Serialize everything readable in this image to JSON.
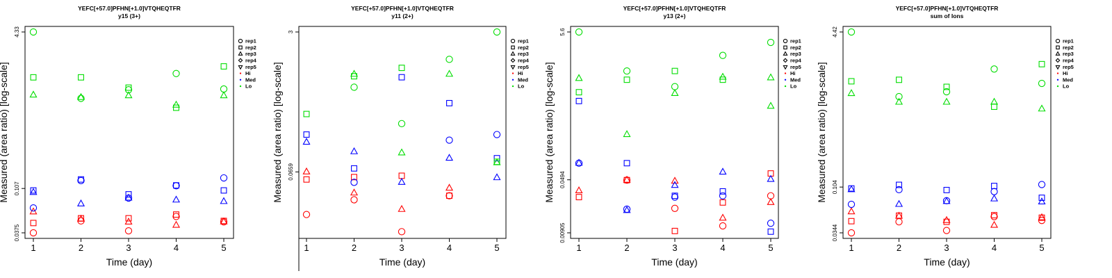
{
  "colors": {
    "Hi": "#ff0000",
    "Med": "#0000ff",
    "Lo": "#00dd00"
  },
  "legend": {
    "placement": "right",
    "items": [
      {
        "label": "rep1",
        "marker": "circle"
      },
      {
        "label": "rep2",
        "marker": "square"
      },
      {
        "label": "rep3",
        "marker": "triangle-up"
      },
      {
        "label": "rep4",
        "marker": "diamond"
      },
      {
        "label": "rep5",
        "marker": "triangle-down"
      },
      {
        "label": "Hi",
        "marker": "dot",
        "color": "#ff0000"
      },
      {
        "label": "Med",
        "marker": "dot",
        "color": "#0000ff"
      },
      {
        "label": "Lo",
        "marker": "dot",
        "color": "#00dd00"
      }
    ]
  },
  "chart_data": [
    {
      "type": "scatter",
      "title": "YEFC[+57.0]PFHN[+1.0]VTQHEQTFR",
      "subtitle": "y15 (3+)",
      "xlabel": "Time (day)",
      "ylabel": "Measured (area ratio) [log-scale]",
      "log_y": true,
      "ylim": [
        0.0375,
        4.33
      ],
      "yticks": [
        "0.0375",
        "0.107",
        "4.33"
      ],
      "xticks": [
        "1",
        "2",
        "3",
        "4",
        "5"
      ],
      "grid": false,
      "series": [
        {
          "name": "Hi",
          "marker": "circle",
          "points": [
            [
              1,
              0.0375
            ],
            [
              2,
              0.0497
            ],
            [
              3,
              0.0393
            ],
            [
              4,
              0.0552
            ],
            [
              5,
              0.0486
            ]
          ]
        },
        {
          "name": "Hi",
          "marker": "square",
          "points": [
            [
              1,
              0.0473
            ],
            [
              2,
              0.0529
            ],
            [
              3,
              0.0529
            ],
            [
              4,
              0.0578
            ],
            [
              5,
              0.0497
            ]
          ]
        },
        {
          "name": "Hi",
          "marker": "triangle-up",
          "points": [
            [
              1,
              0.0616
            ],
            [
              2,
              0.0518
            ],
            [
              3,
              0.0484
            ],
            [
              4,
              0.0449
            ],
            [
              5,
              0.0486
            ]
          ]
        },
        {
          "name": "Med",
          "marker": "circle",
          "points": [
            [
              1,
              0.0676
            ],
            [
              2,
              0.129
            ],
            [
              3,
              0.0853
            ],
            [
              4,
              0.1141
            ],
            [
              5,
              0.1374
            ]
          ]
        },
        {
          "name": "Med",
          "marker": "square",
          "points": [
            [
              1,
              0.1022
            ],
            [
              2,
              0.1325
            ],
            [
              3,
              0.0932
            ],
            [
              4,
              0.1151
            ],
            [
              5,
              0.1022
            ]
          ]
        },
        {
          "name": "Med",
          "marker": "triangle-up",
          "points": [
            [
              1,
              0.0976
            ],
            [
              2,
              0.0744
            ],
            [
              3,
              0.0853
            ],
            [
              4,
              0.0815
            ],
            [
              5,
              0.0787
            ]
          ]
        },
        {
          "name": "Lo",
          "marker": "circle",
          "points": [
            [
              1,
              4.33
            ],
            [
              2,
              0.9009
            ],
            [
              3,
              1.1036
            ],
            [
              4,
              1.6211
            ],
            [
              5,
              1.1241
            ]
          ]
        },
        {
          "name": "Lo",
          "marker": "square",
          "points": [
            [
              1,
              1.4809
            ],
            [
              2,
              1.4809
            ],
            [
              3,
              1.1613
            ],
            [
              4,
              0.7219
            ],
            [
              5,
              1.9189
            ]
          ]
        },
        {
          "name": "Lo",
          "marker": "triangle-up",
          "points": [
            [
              1,
              0.9752
            ],
            [
              2,
              0.9206
            ],
            [
              3,
              0.9595
            ],
            [
              4,
              0.7689
            ],
            [
              5,
              0.9595
            ]
          ]
        }
      ]
    },
    {
      "type": "scatter",
      "title": "YEFC[+57.0]PFHN[+1.0]VTQHEQTFR",
      "subtitle": "y11 (2+)",
      "xlabel": "Time (day)",
      "ylabel": "Measured (area ratio) [log-scale]",
      "log_y": true,
      "ylim": [
        0.0125,
        3
      ],
      "yticks": [
        "0.0659",
        "3"
      ],
      "xticks": [
        "1",
        "2",
        "3",
        "4",
        "5"
      ],
      "grid": false,
      "series": [
        {
          "name": "Hi",
          "marker": "circle",
          "points": [
            [
              1,
              0.0206
            ],
            [
              2,
              0.0308
            ],
            [
              3,
              0.0129
            ],
            [
              4,
              0.0344
            ],
            [
              5,
              null
            ]
          ]
        },
        {
          "name": "Hi",
          "marker": "square",
          "points": [
            [
              1,
              0.0536
            ],
            [
              2,
              0.0572
            ],
            [
              3,
              0.0593
            ],
            [
              4,
              0.0344
            ],
            [
              5,
              null
            ]
          ]
        },
        {
          "name": "Hi",
          "marker": "triangle-up",
          "points": [
            [
              1,
              0.0659
            ],
            [
              2,
              0.0371
            ],
            [
              3,
              0.0237
            ],
            [
              4,
              0.0423
            ],
            [
              5,
              null
            ]
          ]
        },
        {
          "name": "Med",
          "marker": "circle",
          "points": [
            [
              1,
              null
            ],
            [
              2,
              0.0496
            ],
            [
              3,
              null
            ],
            [
              4,
              0.1568
            ],
            [
              5,
              0.1826
            ]
          ]
        },
        {
          "name": "Med",
          "marker": "square",
          "points": [
            [
              1,
              0.1826
            ],
            [
              2,
              0.0725
            ],
            [
              3,
              0.872
            ],
            [
              4,
              0.4302
            ],
            [
              5,
              0.0958
            ]
          ]
        },
        {
          "name": "Med",
          "marker": "triangle-up",
          "points": [
            [
              1,
              0.1482
            ],
            [
              2,
              0.1144
            ],
            [
              3,
              0.0496
            ],
            [
              4,
              0.0958
            ],
            [
              5,
              0.0563
            ]
          ]
        },
        {
          "name": "Lo",
          "marker": "circle",
          "points": [
            [
              1,
              null
            ],
            [
              2,
              0.6648
            ],
            [
              3,
              0.2462
            ],
            [
              4,
              null
            ],
            [
              5,
              3
            ]
          ]
        },
        {
          "name": "Lo",
          "marker": "square",
          "points": [
            [
              1,
              0.3198
            ],
            [
              2,
              0.8961
            ],
            [
              3,
              1.1266
            ],
            [
              4,
              null
            ],
            [
              5,
              0.0868
            ]
          ]
        },
        {
          "name": "Lo",
          "marker": "triangle-up",
          "points": [
            [
              1,
              null
            ],
            [
              2,
              0.9479
            ],
            [
              3,
              0.1108
            ],
            [
              4,
              0.9479
            ],
            [
              5,
              0.0847
            ]
          ]
        },
        {
          "name": "Lo",
          "marker": "circle",
          "points": [
            [
              4,
              1.4219
            ]
          ]
        }
      ]
    },
    {
      "type": "scatter",
      "title": "YEFC[+57.0]PFHN[+1.0]VTQHEQTFR",
      "subtitle": "y13 (2+)",
      "xlabel": "Time (day)",
      "ylabel": "Measured (area ratio) [log-scale]",
      "log_y": true,
      "ylim": [
        0.00905,
        5.6
      ],
      "yticks": [
        "0.00905",
        "0.0494",
        "5.6"
      ],
      "xticks": [
        "1",
        "2",
        "3",
        "4",
        "5"
      ],
      "grid": false,
      "series": [
        {
          "name": "Hi",
          "marker": "circle",
          "points": [
            [
              1,
              null
            ],
            [
              2,
              0.0489
            ],
            [
              3,
              0.0198
            ],
            [
              4,
              0.0113
            ],
            [
              5,
              0.0296
            ]
          ]
        },
        {
          "name": "Hi",
          "marker": "square",
          "points": [
            [
              1,
              0.0284
            ],
            [
              2,
              0.0489
            ],
            [
              3,
              0.0096
            ],
            [
              4,
              0.0239
            ],
            [
              5,
              0.0605
            ]
          ]
        },
        {
          "name": "Hi",
          "marker": "triangle-up",
          "points": [
            [
              1,
              0.0348
            ],
            [
              2,
              0.0489
            ],
            [
              3,
              0.0473
            ],
            [
              4,
              0.0145
            ],
            [
              5,
              0.0239
            ]
          ]
        },
        {
          "name": "Med",
          "marker": "circle",
          "points": [
            [
              1,
              0.0841
            ],
            [
              2,
              0.0193
            ],
            [
              3,
              0.0284
            ],
            [
              4,
              0.0296
            ],
            [
              5,
              0.0123
            ]
          ]
        },
        {
          "name": "Med",
          "marker": "square",
          "points": [
            [
              1,
              0.6145
            ],
            [
              2,
              0.0841
            ],
            [
              3,
              0.0296
            ],
            [
              4,
              0.0341
            ],
            [
              5,
              0.0094
            ]
          ]
        },
        {
          "name": "Med",
          "marker": "triangle-up",
          "points": [
            [
              1,
              0.0841
            ],
            [
              2,
              0.0185
            ],
            [
              3,
              0.0413
            ],
            [
              4,
              0.0632
            ],
            [
              5,
              0.0501
            ]
          ]
        },
        {
          "name": "Lo",
          "marker": "circle",
          "points": [
            [
              1,
              5.6
            ],
            [
              2,
              1.6063
            ],
            [
              3,
              0.9737
            ],
            [
              4,
              2.6464
            ],
            [
              5,
              4.0099
            ]
          ]
        },
        {
          "name": "Lo",
          "marker": "square",
          "points": [
            [
              1,
              0.8149
            ],
            [
              2,
              1.2145
            ],
            [
              3,
              1.6063
            ],
            [
              4,
              1.2145
            ],
            [
              5,
              null
            ]
          ]
        },
        {
          "name": "Lo",
          "marker": "triangle-up",
          "points": [
            [
              1,
              1.2659
            ],
            [
              2,
              0.2104
            ],
            [
              3,
              0.7826
            ],
            [
              4,
              1.3195
            ],
            [
              5,
              0.5205
            ]
          ]
        },
        {
          "name": "Lo",
          "marker": "triangle-up",
          "points": [
            [
              5,
              1.2923
            ]
          ]
        }
      ]
    },
    {
      "type": "scatter",
      "title": "YEFC[+57.0]PFHN[+1.0]VTQHEQTFR",
      "subtitle": "sum of Ions",
      "xlabel": "Time (day)",
      "ylabel": "Measured (area ratio) [log-scale]",
      "log_y": true,
      "ylim": [
        0.0344,
        4.42
      ],
      "yticks": [
        "0.0344",
        "0.104",
        "4.42"
      ],
      "xticks": [
        "1",
        "2",
        "3",
        "4",
        "5"
      ],
      "grid": false,
      "series": [
        {
          "name": "Hi",
          "marker": "circle",
          "points": [
            [
              1,
              0.0344
            ],
            [
              2,
              0.0449
            ],
            [
              3,
              0.0364
            ],
            [
              4,
              0.0509
            ],
            [
              5,
              0.0464
            ]
          ]
        },
        {
          "name": "Hi",
          "marker": "square",
          "points": [
            [
              1,
              0.0456
            ],
            [
              2,
              0.0521
            ],
            [
              3,
              0.0449
            ],
            [
              4,
              0.0527
            ],
            [
              5,
              0.0496
            ]
          ]
        },
        {
          "name": "Hi",
          "marker": "triangle-up",
          "points": [
            [
              1,
              0.0572
            ],
            [
              2,
              0.0515
            ],
            [
              3,
              0.0464
            ],
            [
              4,
              0.0413
            ],
            [
              5,
              0.0496
            ]
          ]
        },
        {
          "name": "Med",
          "marker": "circle",
          "points": [
            [
              1,
              0.0685
            ],
            [
              2,
              0.0977
            ],
            [
              3,
              0.0748
            ],
            [
              4,
              0.0932
            ],
            [
              5,
              0.1106
            ]
          ]
        },
        {
          "name": "Med",
          "marker": "square",
          "points": [
            [
              1,
              0.1006
            ],
            [
              2,
              0.1097
            ],
            [
              3,
              0.0968
            ],
            [
              4,
              0.1068
            ],
            [
              5,
              0.0803
            ]
          ]
        },
        {
          "name": "Med",
          "marker": "triangle-up",
          "points": [
            [
              1,
              0.0977
            ],
            [
              2,
              0.0685
            ],
            [
              3,
              0.0734
            ],
            [
              4,
              0.0782
            ],
            [
              5,
              0.0727
            ]
          ]
        },
        {
          "name": "Lo",
          "marker": "circle",
          "points": [
            [
              1,
              4.42
            ],
            [
              2,
              0.9264
            ],
            [
              3,
              1.0423
            ],
            [
              4,
              1.8049
            ],
            [
              5,
              1.2743
            ]
          ]
        },
        {
          "name": "Lo",
          "marker": "square",
          "points": [
            [
              1,
              1.3417
            ],
            [
              2,
              1.3905
            ],
            [
              3,
              1.1727
            ],
            [
              4,
              0.7252
            ],
            [
              5,
              2.0309
            ]
          ]
        },
        {
          "name": "Lo",
          "marker": "triangle-up",
          "points": [
            [
              1,
              0.9985
            ],
            [
              2,
              0.8098
            ],
            [
              3,
              0.8098
            ],
            [
              4,
              0.8098
            ],
            [
              5,
              0.6874
            ]
          ]
        }
      ]
    }
  ]
}
